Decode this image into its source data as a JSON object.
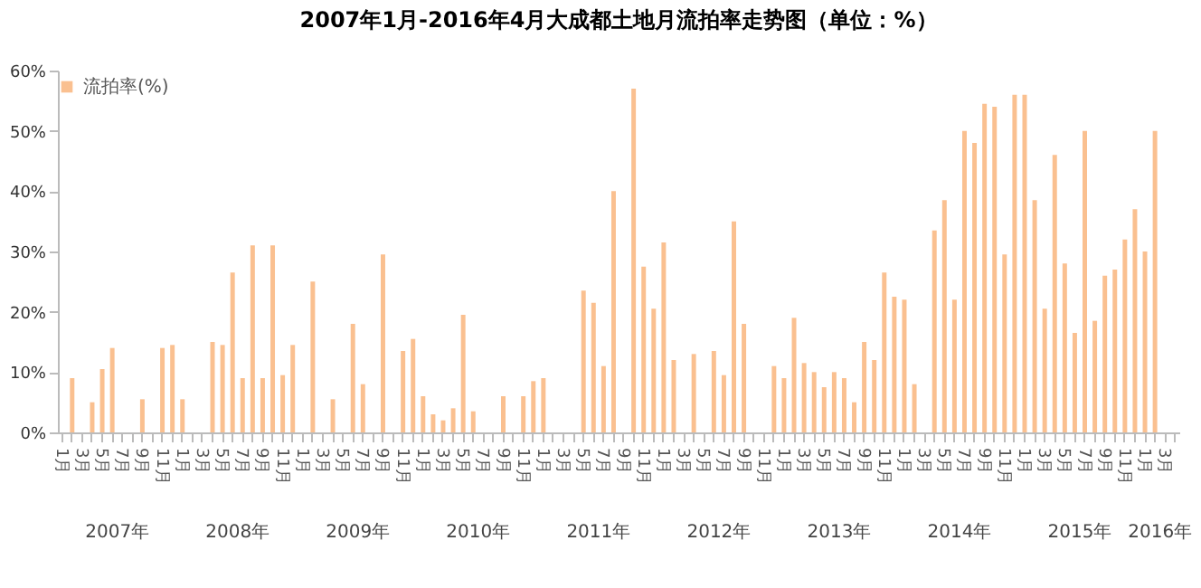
{
  "chart_data": {
    "type": "bar",
    "title": "2007年1月-2016年4月大成都土地月流拍率走势图（单位：%）",
    "categories": [
      "1月",
      null,
      "3月",
      null,
      "5月",
      null,
      "7月",
      null,
      "9月",
      null,
      "11月",
      null,
      "1月",
      null,
      "3月",
      null,
      "5月",
      null,
      "7月",
      null,
      "9月",
      null,
      "11月",
      null,
      "1月",
      null,
      "3月",
      null,
      "5月",
      null,
      "7月",
      null,
      "9月",
      null,
      "11月",
      null,
      "1月",
      null,
      "3月",
      null,
      "5月",
      null,
      "7月",
      null,
      "9月",
      null,
      "11月",
      null,
      "1月",
      null,
      "3月",
      null,
      "5月",
      null,
      "7月",
      null,
      "9月",
      null,
      "11月",
      null,
      "1月",
      null,
      "3月",
      null,
      "5月",
      null,
      "7月",
      null,
      "9月",
      null,
      "11月",
      null,
      "1月",
      null,
      "3月",
      null,
      "5月",
      null,
      "7月",
      null,
      "9月",
      null,
      "11月",
      null,
      "1月",
      null,
      "3月",
      null,
      "5月",
      null,
      "7月",
      null,
      "9月",
      null,
      "11月",
      null,
      "1月",
      null,
      "3月",
      null,
      "5月",
      null,
      "7月",
      null,
      "9月",
      null,
      "11月",
      null,
      "1月",
      null,
      "3月",
      null
    ],
    "series": [
      {
        "name": "流拍率(%)",
        "color": "#fac090",
        "values": [
          null,
          9,
          null,
          5,
          10.5,
          14,
          null,
          null,
          5.5,
          null,
          14,
          14.5,
          5.5,
          null,
          null,
          15,
          14.5,
          26.5,
          9,
          31,
          9,
          31,
          9.5,
          14.5,
          null,
          25,
          null,
          5.5,
          null,
          18,
          8,
          null,
          29.5,
          null,
          13.5,
          15.5,
          6,
          3,
          2,
          4,
          19.5,
          3.5,
          null,
          null,
          6,
          null,
          6,
          8.5,
          9,
          null,
          null,
          null,
          23.5,
          21.5,
          11,
          40,
          null,
          57,
          27.5,
          20.5,
          31.5,
          12,
          null,
          13,
          null,
          13.5,
          9.5,
          35,
          18,
          null,
          null,
          11,
          9,
          19,
          11.5,
          10,
          7.5,
          10,
          9,
          5,
          15,
          12,
          26.5,
          22.5,
          22,
          8,
          null,
          33.5,
          38.5,
          22,
          50,
          48,
          54.5,
          54,
          29.5,
          56,
          56,
          38.5,
          20.5,
          46,
          28,
          16.5,
          50,
          18.5,
          26,
          27,
          32,
          37,
          30,
          50,
          null,
          null
        ]
      }
    ],
    "ylim": [
      0,
      60
    ],
    "yticks": [
      {
        "value": 0,
        "label": "0%"
      },
      {
        "value": 10,
        "label": "10%"
      },
      {
        "value": 20,
        "label": "20%"
      },
      {
        "value": 30,
        "label": "30%"
      },
      {
        "value": 40,
        "label": "40%"
      },
      {
        "value": 50,
        "label": "50%"
      },
      {
        "value": 60,
        "label": "60%"
      }
    ],
    "legend": "top",
    "annotations": [
      "2007年",
      "2008年",
      "2009年",
      "2010年",
      "2011年",
      "2012年",
      "2013年",
      "2014年",
      "2015年",
      "2016年"
    ]
  }
}
